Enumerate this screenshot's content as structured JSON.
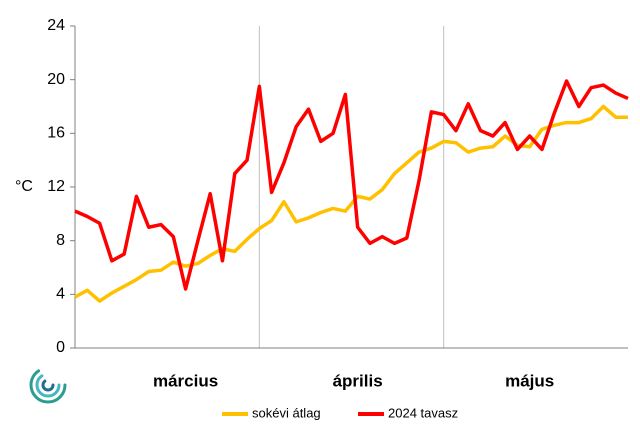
{
  "chart_data": {
    "type": "line",
    "y_label": "°C",
    "categories": [
      null,
      null,
      null,
      null,
      null,
      null,
      null,
      null,
      null,
      "március",
      null,
      null,
      null,
      null,
      null,
      null,
      null,
      null,
      null,
      null,
      null,
      null,
      null,
      "április",
      null,
      null,
      null,
      null,
      null,
      null,
      null,
      null,
      null,
      null,
      null,
      null,
      null,
      "május",
      null,
      null,
      null,
      null,
      null,
      null,
      null,
      null
    ],
    "series": [
      {
        "name": "sokévi átlag",
        "color": "#ffc000",
        "values": [
          3.8,
          4.3,
          3.5,
          4.1,
          4.6,
          5.1,
          5.7,
          5.8,
          6.4,
          6.1,
          6.3,
          6.9,
          7.4,
          7.2,
          8.1,
          8.9,
          9.5,
          10.9,
          9.4,
          9.7,
          10.1,
          10.4,
          10.2,
          11.3,
          11.1,
          11.8,
          13,
          13.8,
          14.6,
          14.9,
          15.4,
          15.3,
          14.6,
          14.9,
          15,
          15.8,
          15.1,
          15,
          16.3,
          16.6,
          16.8,
          16.8,
          17.1,
          18,
          17.2,
          17.2
        ]
      },
      {
        "name": "2024 tavasz",
        "color": "#ff0000",
        "values": [
          10.2,
          9.8,
          9.3,
          6.5,
          7,
          11.3,
          9,
          9.2,
          8.3,
          4.4,
          8,
          11.5,
          6.5,
          13,
          14,
          19.5,
          11.6,
          13.8,
          16.5,
          17.8,
          15.4,
          16,
          18.9,
          9,
          7.8,
          8.3,
          7.8,
          8.2,
          12.5,
          17.6,
          17.4,
          16.2,
          18.2,
          16.2,
          15.8,
          16.8,
          14.8,
          15.8,
          14.8,
          17.5,
          19.9,
          18,
          19.4,
          19.6,
          19,
          18.6
        ]
      }
    ],
    "ylim": [
      0,
      24
    ],
    "yticks": [
      0,
      4,
      8,
      12,
      16,
      20,
      24
    ],
    "grid": false,
    "legend": "bottom"
  }
}
